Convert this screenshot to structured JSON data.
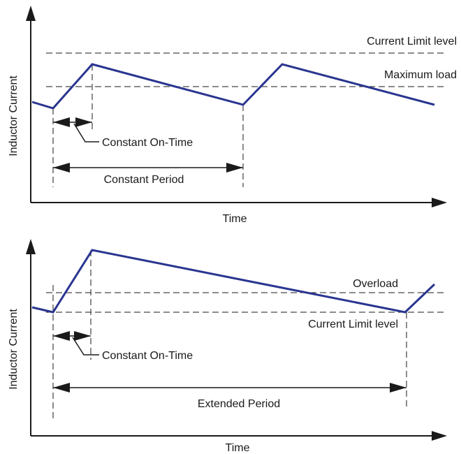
{
  "top": {
    "y_label": "Inductor Current",
    "x_label": "Time",
    "level_upper_label": "Current Limit level",
    "level_lower_label": "Maximum load",
    "on_time_label": "Constant On-Time",
    "period_label": "Constant Period"
  },
  "bottom": {
    "y_label": "Inductor Current",
    "x_label": "Time",
    "level_upper_label": "Overload",
    "level_lower_label": "Current Limit level",
    "on_time_label": "Constant On-Time",
    "period_label": "Extended Period"
  },
  "colors": {
    "waveform": "#2a3590",
    "lines": "#1a1a1a"
  }
}
